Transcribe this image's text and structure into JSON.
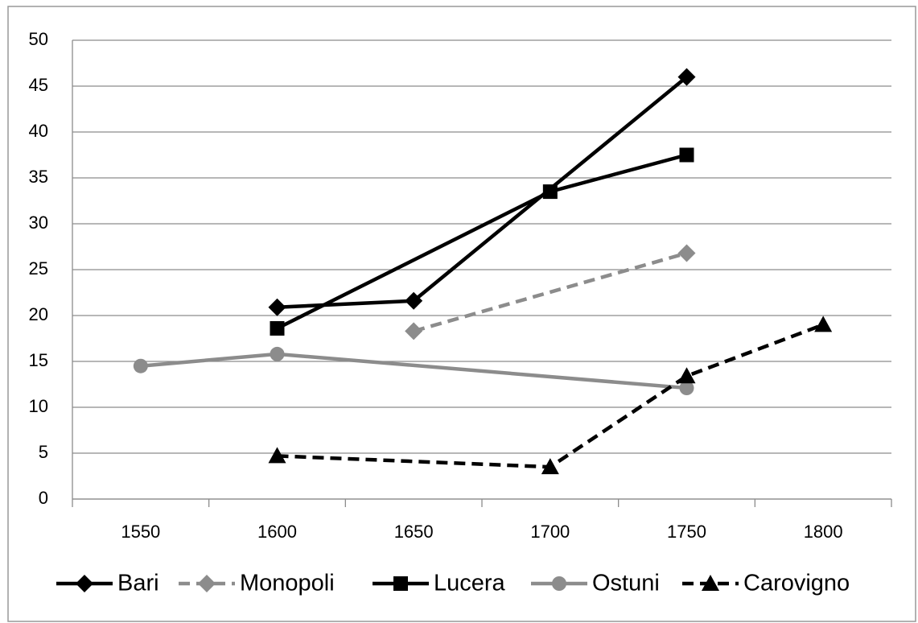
{
  "chart_data": {
    "type": "line",
    "xlim": [
      1525,
      1825
    ],
    "xticks": [
      1550,
      1600,
      1650,
      1700,
      1750,
      1800
    ],
    "ylim": [
      0,
      50
    ],
    "yticks": [
      0,
      5,
      10,
      15,
      20,
      25,
      30,
      35,
      40,
      45,
      50
    ],
    "grid": true,
    "legend": "bottom",
    "series": [
      {
        "name": "Bari",
        "color": "#000000",
        "dash": false,
        "marker": "diamond",
        "x": [
          1600,
          1650,
          1750
        ],
        "values": [
          20.9,
          21.6,
          46
        ]
      },
      {
        "name": "Monopoli",
        "color": "#8c8c8c",
        "dash": true,
        "marker": "diamond",
        "x": [
          1650,
          1750
        ],
        "values": [
          18.3,
          26.8
        ]
      },
      {
        "name": "Lucera",
        "color": "#000000",
        "dash": false,
        "marker": "square",
        "x": [
          1600,
          1700,
          1750
        ],
        "values": [
          18.6,
          33.5,
          37.5
        ]
      },
      {
        "name": "Ostuni",
        "color": "#8c8c8c",
        "dash": false,
        "marker": "circle",
        "x": [
          1550,
          1600,
          1750
        ],
        "values": [
          14.5,
          15.8,
          12.1
        ]
      },
      {
        "name": "Carovigno",
        "color": "#000000",
        "dash": true,
        "marker": "triangle",
        "x": [
          1600,
          1700,
          1750,
          1800
        ],
        "values": [
          4.7,
          3.5,
          13.4,
          19
        ]
      }
    ]
  }
}
